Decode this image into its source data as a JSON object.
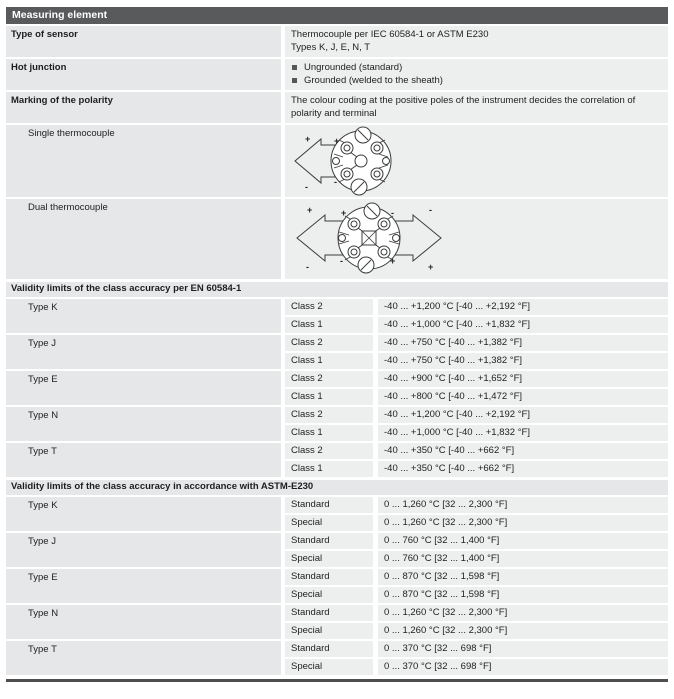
{
  "header": {
    "title": "Measuring element"
  },
  "colors": {
    "title_bar": "#595a5c",
    "label_cell": "#e6e7e8",
    "value_cell": "#edeeee",
    "bullet": "#55565a",
    "bottom_rule": "#4d4e50",
    "diagram_stroke": "#3b3c3e"
  },
  "properties": [
    {
      "label": "Type of sensor",
      "lines": [
        "Thermocouple per IEC 60584-1 or ASTM E230",
        "Types K, J, E, N, T"
      ]
    },
    {
      "label": "Hot junction",
      "bullets": [
        "Ungrounded (standard)",
        "Grounded (welded to the sheath)"
      ]
    },
    {
      "label": "Marking of the polarity",
      "lines": [
        "The colour coding at the positive poles of the instrument decides the correlation of polarity and terminal"
      ]
    }
  ],
  "diagrams": [
    {
      "label": "Single thermocouple",
      "marks": {
        "wire_top": "+",
        "wire_bottom": "-",
        "terminal_top": "+",
        "terminal_bottom": "-"
      }
    },
    {
      "label": "Dual thermocouple",
      "marks": {
        "left_top": "+",
        "left_bottom": "-",
        "right_top": "-",
        "right_bottom": "+",
        "inner_nw": "+",
        "inner_sw": "-",
        "inner_ne": "-",
        "inner_se": "+"
      }
    }
  ],
  "sections": [
    {
      "title": "Validity limits of the class accuracy per EN 60584-1",
      "groups": [
        {
          "type": "Type K",
          "rows": [
            {
              "grade": "Class 2",
              "range": "-40 ... +1,200 °C [-40 ... +2,192 °F]"
            },
            {
              "grade": "Class 1",
              "range": "-40 ... +1,000 °C [-40 ... +1,832 °F]"
            }
          ]
        },
        {
          "type": "Type J",
          "rows": [
            {
              "grade": "Class 2",
              "range": "-40 ... +750 °C [-40 ... +1,382 °F]"
            },
            {
              "grade": "Class 1",
              "range": "-40 ... +750 °C [-40 ... +1,382 °F]"
            }
          ]
        },
        {
          "type": "Type E",
          "rows": [
            {
              "grade": "Class 2",
              "range": "-40 ... +900 °C [-40 ... +1,652 °F]"
            },
            {
              "grade": "Class 1",
              "range": "-40 ... +800 °C [-40 ... +1,472 °F]"
            }
          ]
        },
        {
          "type": "Type N",
          "rows": [
            {
              "grade": "Class 2",
              "range": "-40 ... +1,200 °C [-40 ... +2,192 °F]"
            },
            {
              "grade": "Class 1",
              "range": "-40 ... +1,000 °C [-40 ... +1,832 °F]"
            }
          ]
        },
        {
          "type": "Type T",
          "rows": [
            {
              "grade": "Class 2",
              "range": "-40 ... +350 °C [-40 ... +662 °F]"
            },
            {
              "grade": "Class 1",
              "range": "-40 ... +350 °C [-40 ... +662 °F]"
            }
          ]
        }
      ]
    },
    {
      "title": "Validity limits of the class accuracy in accordance with ASTM-E230",
      "groups": [
        {
          "type": "Type K",
          "rows": [
            {
              "grade": "Standard",
              "range": "0 ... 1,260 °C [32 ... 2,300 °F]"
            },
            {
              "grade": "Special",
              "range": "0 ... 1,260 °C [32 ... 2,300 °F]"
            }
          ]
        },
        {
          "type": "Type J",
          "rows": [
            {
              "grade": "Standard",
              "range": "0 ... 760 °C [32 ... 1,400 °F]"
            },
            {
              "grade": "Special",
              "range": "0 ... 760 °C [32 ... 1,400 °F]"
            }
          ]
        },
        {
          "type": "Type E",
          "rows": [
            {
              "grade": "Standard",
              "range": "0 ... 870 °C [32 ... 1,598 °F]"
            },
            {
              "grade": "Special",
              "range": "0 ... 870 °C [32 ... 1,598 °F]"
            }
          ]
        },
        {
          "type": "Type N",
          "rows": [
            {
              "grade": "Standard",
              "range": "0 ... 1,260 °C [32 ... 2,300 °F]"
            },
            {
              "grade": "Special",
              "range": "0 ... 1,260 °C [32 ... 2,300 °F]"
            }
          ]
        },
        {
          "type": "Type T",
          "rows": [
            {
              "grade": "Standard",
              "range": "0 ... 370 °C [32 ... 698 °F]"
            },
            {
              "grade": "Special",
              "range": "0 ... 370 °C [32 ... 698 °F]"
            }
          ]
        }
      ]
    }
  ]
}
